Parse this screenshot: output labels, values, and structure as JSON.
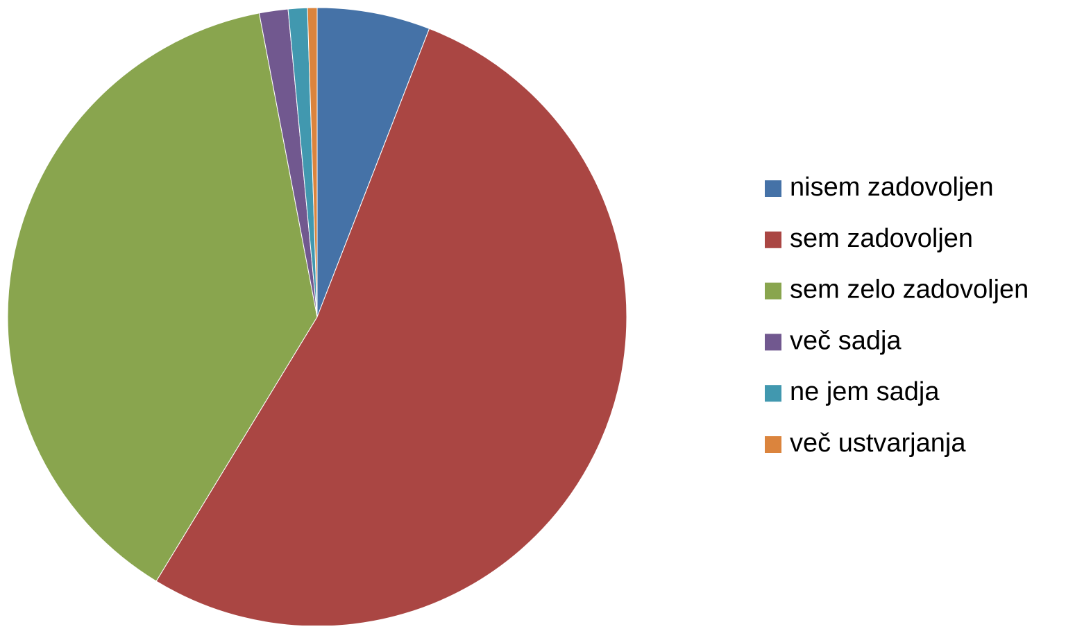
{
  "chart_data": {
    "type": "pie",
    "categories": [
      "nisem zadovoljen",
      "sem zadovoljen",
      "sem zelo zadovoljen",
      "več sadja",
      "ne jem sadja",
      "več ustvarjanja"
    ],
    "values": [
      5.9,
      52.8,
      38.3,
      1.5,
      1.0,
      0.5
    ],
    "colors": [
      "#4572a7",
      "#aa4643",
      "#89a54e",
      "#71588f",
      "#4198af",
      "#db843d"
    ],
    "legend": "right"
  }
}
